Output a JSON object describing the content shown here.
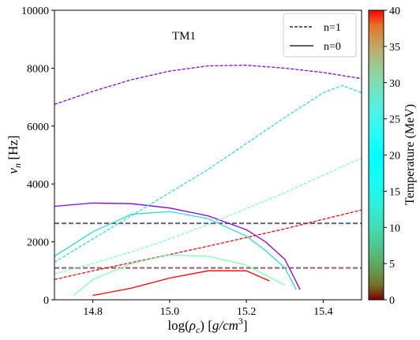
{
  "chart_data": {
    "type": "line",
    "annotation": "TM1",
    "xlabel_parts": [
      "log(",
      "ρ",
      "c",
      ") [",
      "g/cm",
      "3",
      "]"
    ],
    "ylabel_parts": [
      "ν",
      "n",
      " [Hz]"
    ],
    "xlim": [
      14.7,
      15.5
    ],
    "ylim": [
      0,
      10000
    ],
    "xticks": [
      14.8,
      15.0,
      15.2,
      15.4
    ],
    "yticks": [
      0,
      2000,
      4000,
      6000,
      8000,
      10000
    ],
    "legend": {
      "position": "top-right",
      "entries": [
        {
          "label": "n=1",
          "style": "dashed"
        },
        {
          "label": "n=0",
          "style": "solid"
        }
      ]
    },
    "colorbar": {
      "label": "Temperature (MeV)",
      "min": 0,
      "max": 40,
      "ticks": [
        0,
        5,
        10,
        15,
        20,
        25,
        30,
        35,
        40
      ],
      "colormap": "rainbow"
    },
    "horizontal_lines": [
      {
        "y": 2640,
        "style": "dashed",
        "color": "#6a5a9a"
      },
      {
        "y": 1100,
        "style": "dashed",
        "color": "#9a5a6a"
      }
    ],
    "series": [
      {
        "mode": "n=1",
        "temperature": 0,
        "color": "#8000ff",
        "x": [
          14.7,
          14.8,
          14.9,
          15.0,
          15.1,
          15.2,
          15.3,
          15.4,
          15.5
        ],
        "y": [
          6750,
          7200,
          7600,
          7900,
          8080,
          8100,
          8000,
          7850,
          7640
        ]
      },
      {
        "mode": "n=0",
        "temperature": 0,
        "color": "#8000ff",
        "x": [
          14.7,
          14.8,
          14.9,
          15.0,
          15.1,
          15.2,
          15.25,
          15.3,
          15.34
        ],
        "y": [
          3230,
          3340,
          3320,
          3170,
          2900,
          2420,
          2000,
          1400,
          350
        ]
      },
      {
        "mode": "n=1",
        "temperature": 10,
        "color": "#2adcdc",
        "x": [
          14.7,
          14.8,
          14.9,
          15.0,
          15.1,
          15.2,
          15.3,
          15.4,
          15.45,
          15.5
        ],
        "y": [
          1300,
          2100,
          2900,
          3700,
          4500,
          5400,
          6300,
          7150,
          7400,
          7150
        ]
      },
      {
        "mode": "n=1",
        "temperature": 20,
        "color": "#80ffb4",
        "x": [
          14.7,
          14.8,
          14.9,
          15.0,
          15.1,
          15.2,
          15.3,
          15.4,
          15.5
        ],
        "y": [
          900,
          1250,
          1650,
          2100,
          2600,
          3150,
          3700,
          4300,
          4900
        ]
      },
      {
        "mode": "n=1",
        "temperature": 40,
        "color": "#ff0000",
        "x": [
          14.7,
          14.8,
          14.9,
          15.0,
          15.1,
          15.2,
          15.3,
          15.4,
          15.5
        ],
        "y": [
          700,
          1000,
          1280,
          1560,
          1850,
          2150,
          2450,
          2780,
          3100
        ]
      },
      {
        "mode": "n=0",
        "temperature": 10,
        "color": "#2adcdc",
        "x": [
          14.7,
          14.8,
          14.9,
          15.0,
          15.1,
          15.2,
          15.25,
          15.3,
          15.33
        ],
        "y": [
          1500,
          2350,
          2950,
          3050,
          2800,
          2200,
          1700,
          1100,
          350
        ]
      },
      {
        "mode": "n=0",
        "temperature": 20,
        "color": "#80ffb4",
        "x": [
          14.75,
          14.8,
          14.9,
          15.0,
          15.1,
          15.2,
          15.3
        ],
        "y": [
          150,
          700,
          1250,
          1550,
          1500,
          1200,
          500
        ]
      },
      {
        "mode": "n=0",
        "temperature": 40,
        "color": "#ff0000",
        "x": [
          14.8,
          14.9,
          15.0,
          15.1,
          15.2,
          15.26
        ],
        "y": [
          150,
          400,
          750,
          1000,
          1000,
          650
        ]
      }
    ]
  }
}
